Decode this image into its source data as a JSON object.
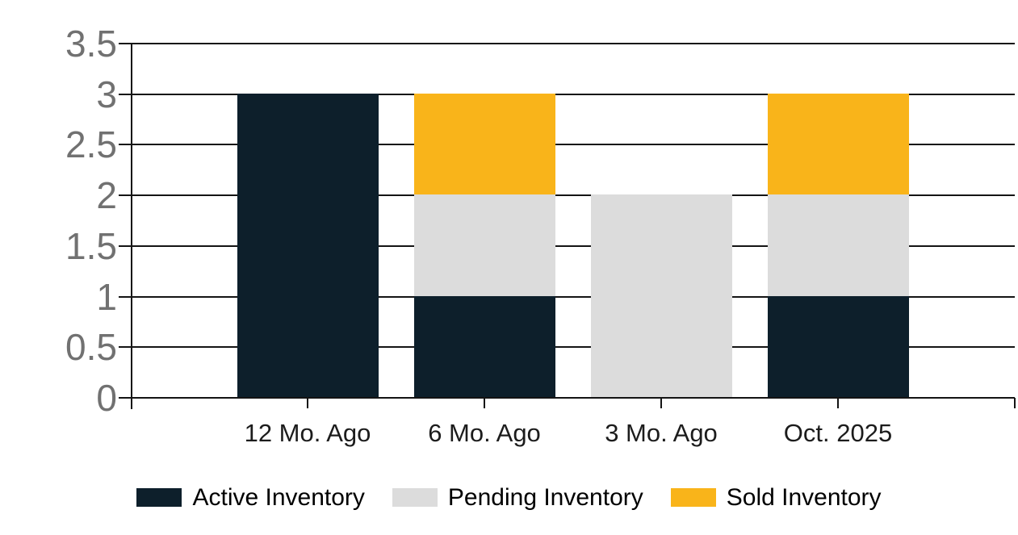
{
  "chart_data": {
    "type": "bar",
    "stacked": true,
    "title": "",
    "xlabel": "",
    "ylabel": "",
    "categories": [
      "12 Mo. Ago",
      "6 Mo. Ago",
      "3 Mo. Ago",
      "Oct. 2025"
    ],
    "series": [
      {
        "name": "Active Inventory",
        "color": "#0D1F2B",
        "values": [
          3,
          1,
          0,
          1
        ]
      },
      {
        "name": "Pending Inventory",
        "color": "#DCDCDC",
        "values": [
          0,
          1,
          2,
          1
        ]
      },
      {
        "name": "Sold Inventory",
        "color": "#F9B41A",
        "values": [
          0,
          1,
          0,
          1
        ]
      }
    ],
    "totals": [
      3,
      3,
      2,
      3
    ],
    "ylim": [
      0,
      3.5
    ],
    "yticks": [
      0,
      0.5,
      1,
      1.5,
      2,
      2.5,
      3,
      3.5
    ],
    "ytick_labels": [
      "0",
      "0.5",
      "1",
      "1.5",
      "2",
      "2.5",
      "3",
      "3.5"
    ],
    "grid": true,
    "legend_position": "bottom",
    "colors": {
      "axis": "#141414",
      "y_tick_label": "#717171",
      "x_tick_label": "#1c1c1c",
      "legend_text": "#000000",
      "background": "#ffffff"
    }
  }
}
